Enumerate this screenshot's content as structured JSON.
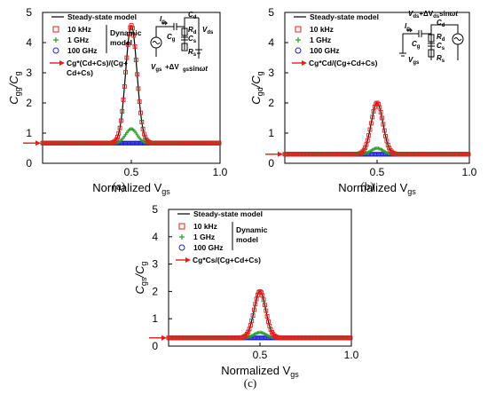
{
  "chart_data": [
    {
      "type": "line",
      "panel_caption": "(a)",
      "ylabel_main": "C",
      "ylabel_main_sub": "gg",
      "ylabel_slash": "/C",
      "ylabel_den_sub": "g",
      "xlabel_main": "Normalized V",
      "xlabel_sub": "gs",
      "xlim": [
        0.0,
        1.0
      ],
      "ylim": [
        0,
        5
      ],
      "xticks": [
        "0.5",
        "1.0"
      ],
      "xtick_values": [
        0.5,
        1.0
      ],
      "yticks": [
        "0",
        "1",
        "2",
        "3",
        "4",
        "5"
      ],
      "peak_x": 0.5,
      "baseline": 0.67,
      "peaks": {
        "10 kHz": 3.9,
        "1 GHz": 0.47,
        "100 GHz": 0.0
      },
      "peak_width": 0.045,
      "arrow_label": "Cg*(Cd+Cs)/(Cg+ Cd+Cs)",
      "arrow_value": 0.67,
      "legend": {
        "steady": "Steady-state model",
        "dynamic": [
          "10 kHz",
          "1 GHz",
          "100 GHz"
        ],
        "dynamic_label": [
          "Dynamic",
          "model"
        ]
      },
      "series": [
        {
          "name": "Steady-state model",
          "marker": "line",
          "color": "#000000"
        },
        {
          "name": "10 kHz",
          "marker": "square",
          "color": "#e0201b"
        },
        {
          "name": "1 GHz",
          "marker": "plus",
          "color": "#2ca02c"
        },
        {
          "name": "100 GHz",
          "marker": "circle",
          "color": "#1f1fe0"
        }
      ],
      "circuit": {
        "labels": [
          "I",
          "g",
          "C",
          "d",
          "C",
          "g",
          "R",
          "d",
          "C",
          "s",
          "R",
          "s",
          "V",
          "ds",
          "V",
          "gs",
          "+ΔV",
          "gs",
          "sin",
          "ωt"
        ]
      }
    },
    {
      "type": "line",
      "panel_caption": "(b)",
      "ylabel_main": "C",
      "ylabel_main_sub": "gd",
      "ylabel_slash": "/C",
      "ylabel_den_sub": "g",
      "xlabel_main": "Normalized V",
      "xlabel_sub": "gs",
      "xlim": [
        0.0,
        1.0
      ],
      "ylim": [
        0,
        5
      ],
      "xticks": [
        "0.5",
        "1.0"
      ],
      "xtick_values": [
        0.5,
        1.0
      ],
      "yticks": [
        "0",
        "1",
        "2",
        "3",
        "4",
        "5"
      ],
      "peak_x": 0.5,
      "baseline": 0.3,
      "peaks": {
        "10 kHz": 1.7,
        "1 GHz": 0.2,
        "100 GHz": 0.0
      },
      "peak_width": 0.045,
      "arrow_label": "Cg*Cd/(Cg+Cd+Cs)",
      "arrow_value": 0.3,
      "legend": {
        "steady": "Steady-state model",
        "dynamic": [
          "10 kHz",
          "1 GHz",
          "100 GHz"
        ],
        "dynamic_label": []
      },
      "series": [
        {
          "name": "Steady-state model",
          "marker": "line",
          "color": "#000000"
        },
        {
          "name": "10 kHz",
          "marker": "square",
          "color": "#e0201b"
        },
        {
          "name": "1 GHz",
          "marker": "plus",
          "color": "#2ca02c"
        },
        {
          "name": "100 GHz",
          "marker": "circle",
          "color": "#1f1fe0"
        }
      ],
      "circuit": {
        "labels": [
          "V",
          "ds",
          "+ΔV",
          "ds",
          "sin",
          "ωt",
          "I",
          "g",
          "C",
          "d",
          "R",
          "d",
          "C",
          "g",
          "C",
          "s",
          "R",
          "s",
          "V",
          "gs"
        ]
      }
    },
    {
      "type": "line",
      "panel_caption": "(c)",
      "ylabel_main": "C",
      "ylabel_main_sub": "gs",
      "ylabel_slash": "/C",
      "ylabel_den_sub": "g",
      "xlabel_main": "Normalized V",
      "xlabel_sub": "gs",
      "xlim": [
        0.0,
        1.0
      ],
      "ylim": [
        0,
        5
      ],
      "xticks": [
        "0.5",
        "1.0"
      ],
      "xtick_values": [
        0.5,
        1.0
      ],
      "yticks": [
        "0",
        "1",
        "2",
        "3",
        "4",
        "5"
      ],
      "peak_x": 0.5,
      "baseline": 0.3,
      "peaks": {
        "10 kHz": 1.7,
        "1 GHz": 0.2,
        "100 GHz": 0.0
      },
      "peak_width": 0.045,
      "arrow_label": "Cg*Cs/(Cg+Cd+Cs)",
      "arrow_value": 0.3,
      "legend": {
        "steady": "Steady-state model",
        "dynamic": [
          "10 kHz",
          "1 GHz",
          "100 GHz"
        ],
        "dynamic_label": [
          "Dynamic",
          "model"
        ]
      },
      "series": [
        {
          "name": "Steady-state model",
          "marker": "line",
          "color": "#000000"
        },
        {
          "name": "10 kHz",
          "marker": "square",
          "color": "#e0201b"
        },
        {
          "name": "1 GHz",
          "marker": "plus",
          "color": "#2ca02c"
        },
        {
          "name": "100 GHz",
          "marker": "circle",
          "color": "#1f1fe0"
        }
      ],
      "circuit": null
    }
  ]
}
